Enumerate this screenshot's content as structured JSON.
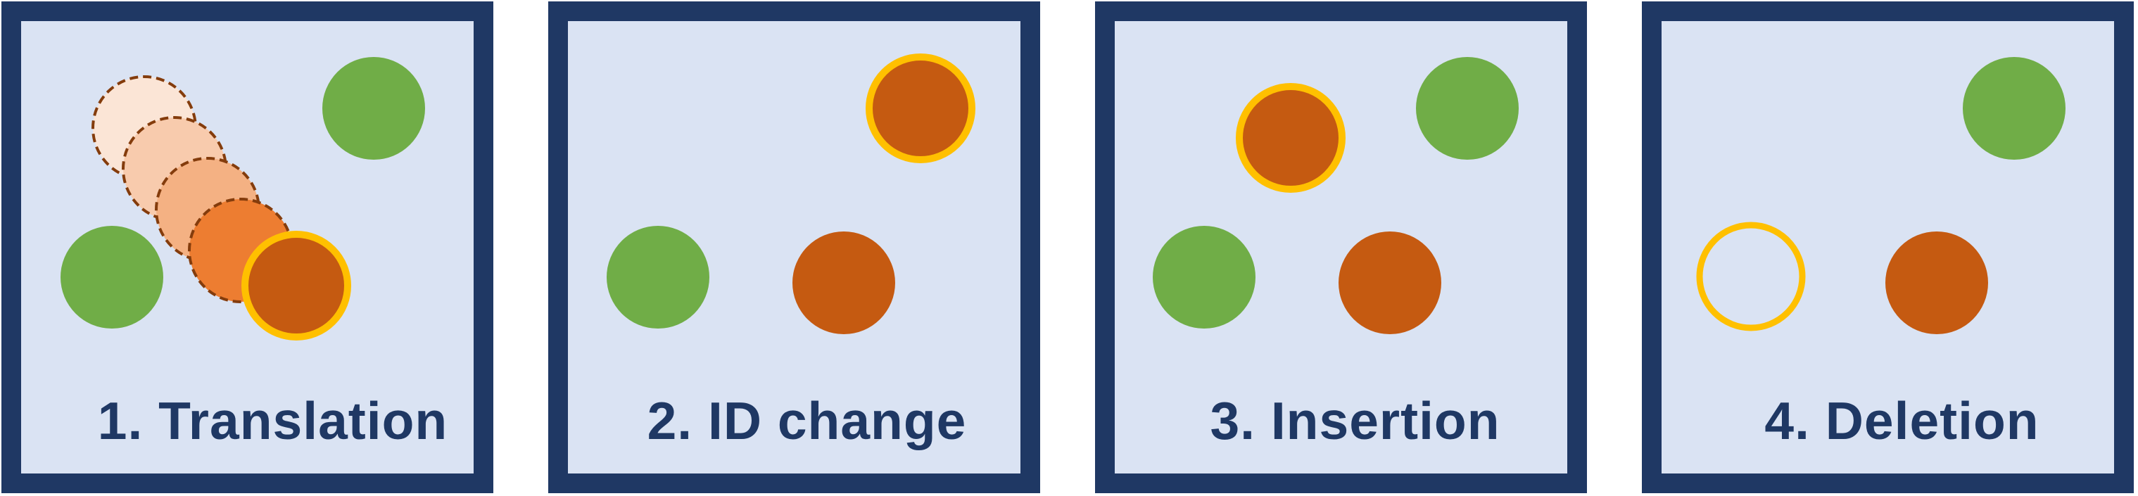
{
  "colors": {
    "frame_border": "#1f3864",
    "panel_fill": "#dae3f3",
    "label_text": "#1f3864",
    "green_object": "#70ad47",
    "orange_object": "#c55a11",
    "highlight_ring": "#ffc000",
    "trail_outline": "#843c0c",
    "trail_fills": [
      "#fbe5d6",
      "#f8cbad",
      "#f4b183",
      "#ed7d31"
    ]
  },
  "panels": [
    {
      "id": "translation",
      "label": "1. Translation",
      "objects": [
        {
          "kind": "green",
          "name": "green-object"
        },
        {
          "kind": "green",
          "name": "green-object"
        },
        {
          "kind": "trail",
          "name": "previous-position-ghost",
          "shade": 0
        },
        {
          "kind": "trail",
          "name": "previous-position-ghost",
          "shade": 1
        },
        {
          "kind": "trail",
          "name": "previous-position-ghost",
          "shade": 2
        },
        {
          "kind": "trail",
          "name": "previous-position-ghost",
          "shade": 3
        },
        {
          "kind": "orange-highlighted",
          "name": "moved-object"
        }
      ]
    },
    {
      "id": "id-change",
      "label": "2. ID change",
      "objects": [
        {
          "kind": "orange-highlighted",
          "name": "changed-id-object"
        },
        {
          "kind": "green",
          "name": "green-object"
        },
        {
          "kind": "orange",
          "name": "orange-object"
        }
      ]
    },
    {
      "id": "insertion",
      "label": "3. Insertion",
      "objects": [
        {
          "kind": "orange-highlighted",
          "name": "inserted-object"
        },
        {
          "kind": "green",
          "name": "green-object"
        },
        {
          "kind": "green",
          "name": "green-object"
        },
        {
          "kind": "orange",
          "name": "orange-object"
        }
      ]
    },
    {
      "id": "deletion",
      "label": "4. Deletion",
      "objects": [
        {
          "kind": "green",
          "name": "green-object"
        },
        {
          "kind": "empty-highlighted",
          "name": "deleted-object-outline"
        },
        {
          "kind": "orange",
          "name": "orange-object"
        }
      ]
    }
  ]
}
